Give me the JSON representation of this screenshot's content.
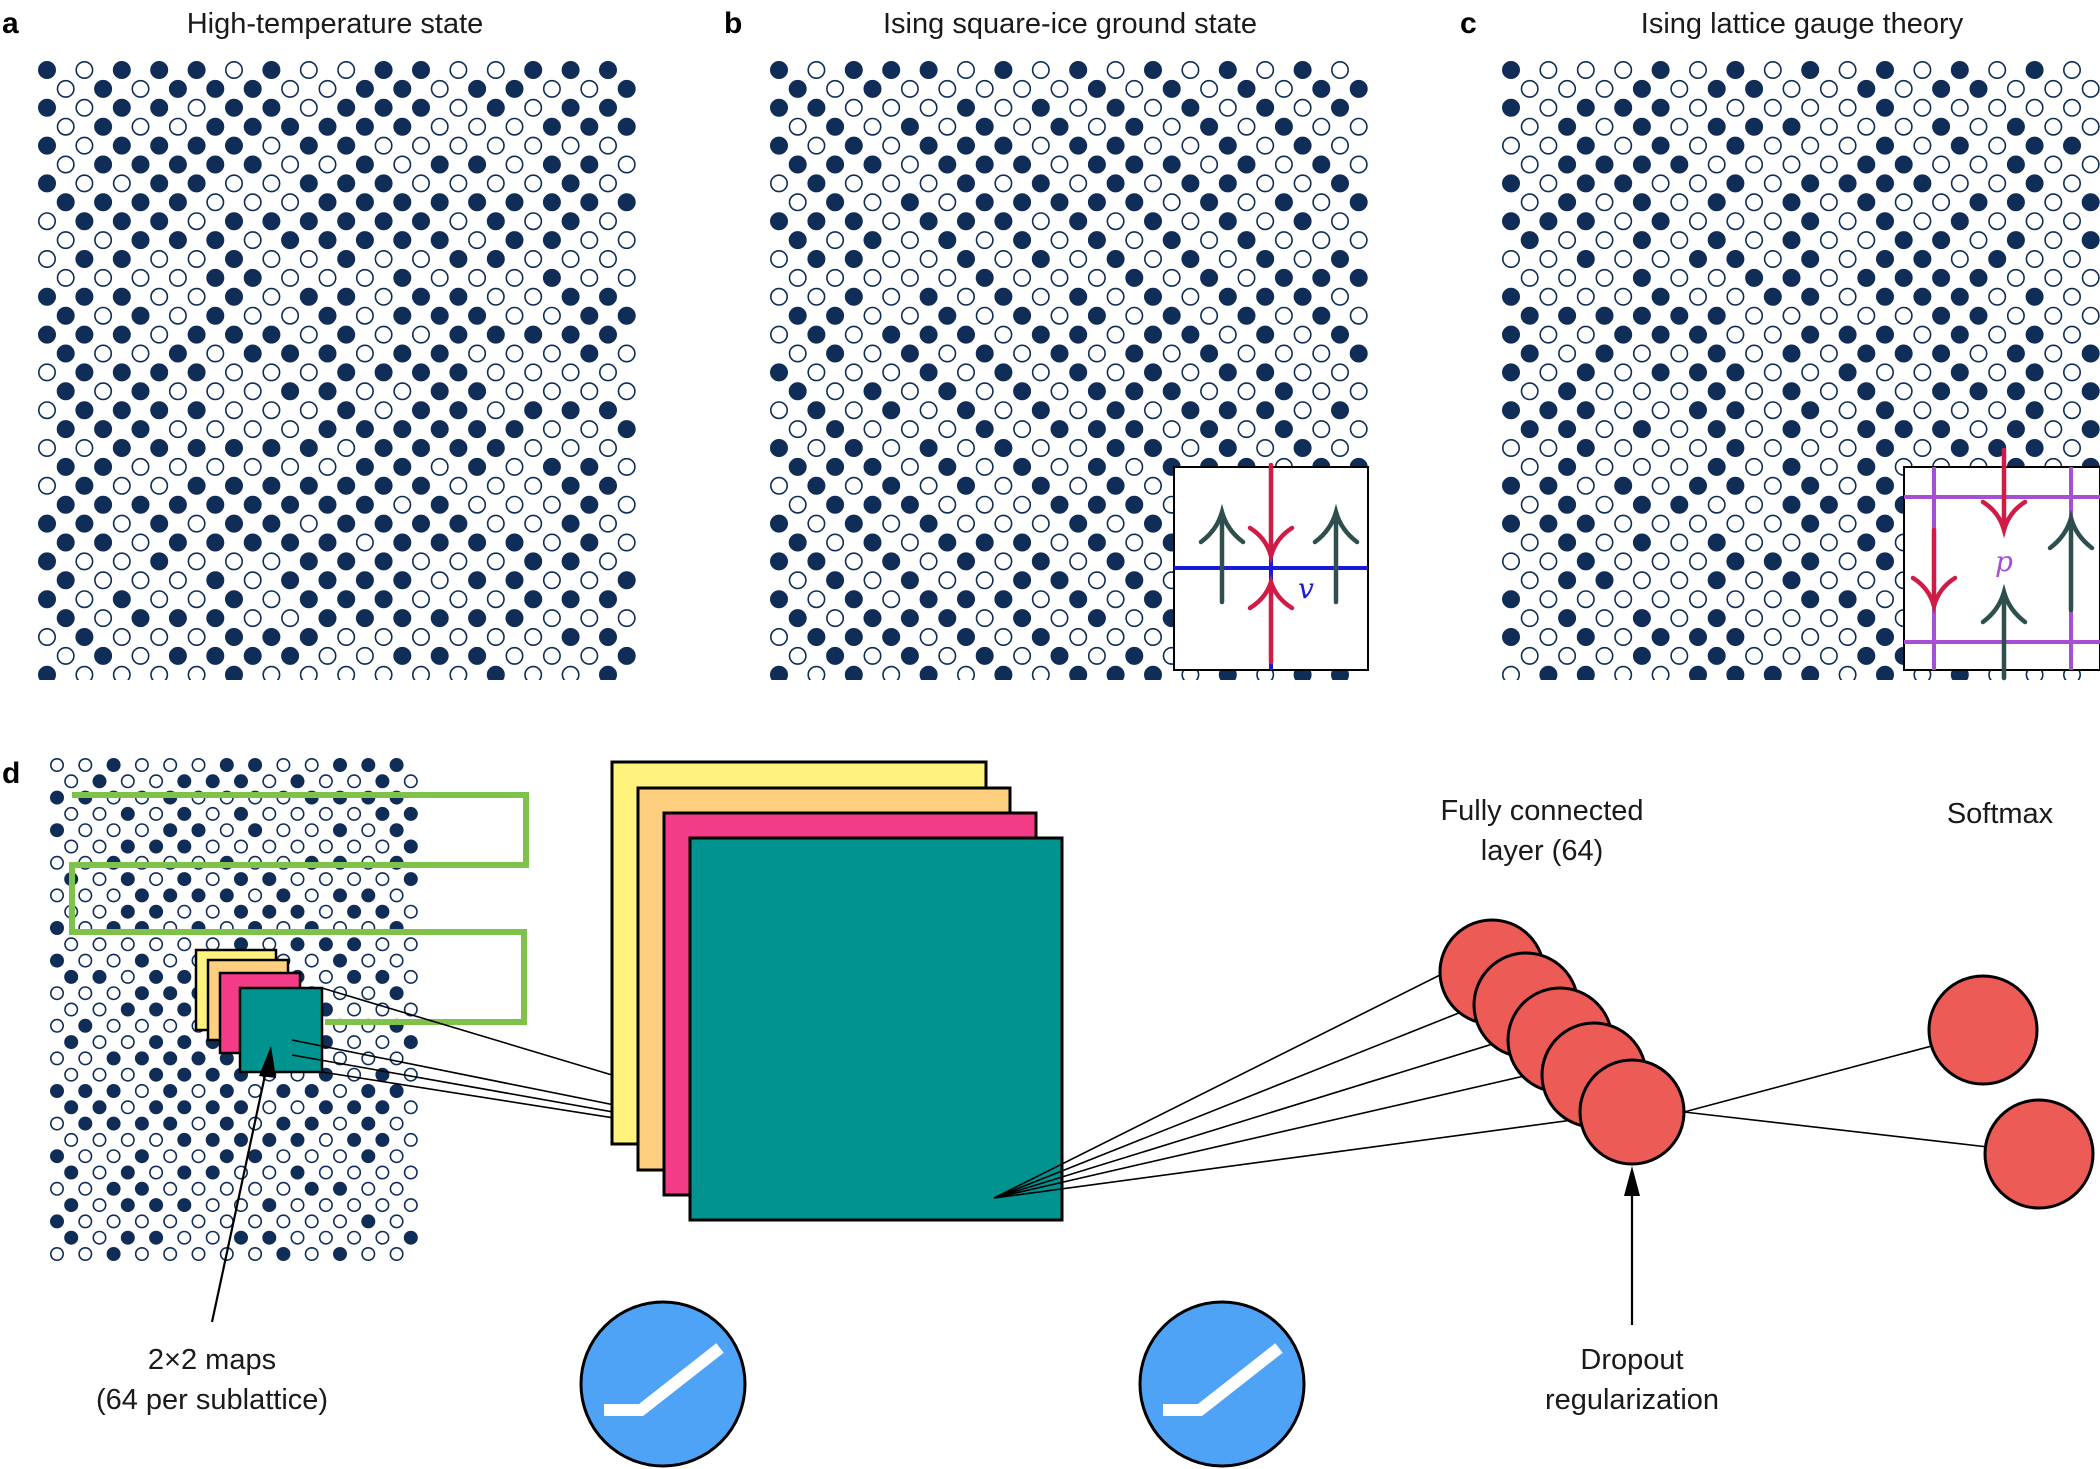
{
  "panels": {
    "a": {
      "letter": "a",
      "title": "High-temperature state"
    },
    "b": {
      "letter": "b",
      "title": "Ising square-ice ground state",
      "inset_label": "v"
    },
    "c": {
      "letter": "c",
      "title": "Ising lattice gauge theory",
      "inset_label": "p"
    },
    "d": {
      "letter": "d",
      "fc_label_line1": "Fully connected",
      "fc_label_line2": "layer (64)",
      "softmax_label": "Softmax",
      "maps_label_line1": "2×2 maps",
      "maps_label_line2": "(64 per sublattice)",
      "dropout_label_line1": "Dropout",
      "dropout_label_line2": "regularization"
    }
  },
  "colors": {
    "spin_filled": "#0f2d57",
    "spin_open": "#ffffff",
    "arrow_red": "#d01b47",
    "arrow_green": "#2f4f4f",
    "vertex_line": "#1a1adb",
    "plaquette_line": "#a64fd4",
    "filter_yellow": "#fff27d",
    "filter_orange": "#fdcf7f",
    "filter_pink": "#f33b87",
    "filter_teal": "#00938f",
    "neuron": "#ec5b55",
    "relu": "#4fa3f7",
    "window_green": "#7fc24a"
  },
  "icons": [
    "relu-activation-icon",
    "relu-activation-icon"
  ]
}
